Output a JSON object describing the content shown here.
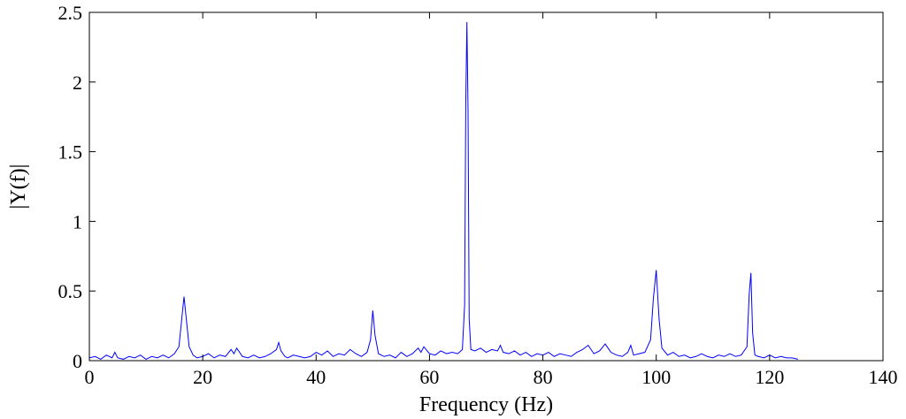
{
  "chart_data": {
    "type": "line",
    "title": "",
    "xlabel": "Frequency (Hz)",
    "ylabel": "|Y(f)|",
    "xlim": [
      0,
      140
    ],
    "ylim": [
      0,
      2.5
    ],
    "xticks": [
      0,
      20,
      40,
      60,
      80,
      100,
      120,
      140
    ],
    "xtick_labels": [
      "0",
      "20",
      "40",
      "60",
      "80",
      "100",
      "120",
      "140"
    ],
    "yticks": [
      0,
      0.5,
      1,
      1.5,
      2,
      2.5
    ],
    "ytick_labels": [
      "0",
      "0.5",
      "1",
      "1.5",
      "2",
      "2.5"
    ],
    "grid": false,
    "legend": "none",
    "series": [
      {
        "color": "#0000ff",
        "x": [
          0,
          1,
          2,
          3,
          4,
          4.5,
          5,
          6,
          7,
          8,
          9,
          10,
          11,
          12,
          13,
          14,
          15,
          15.8,
          16.3,
          16.7,
          17.1,
          17.6,
          18.3,
          19,
          20,
          21,
          22,
          23,
          24,
          25,
          25.5,
          26,
          27,
          28,
          29,
          30,
          31,
          32,
          33.0,
          33.4,
          33.8,
          34.5,
          35,
          36,
          37,
          38,
          39,
          40,
          41,
          42,
          43,
          44,
          45,
          46,
          47,
          48,
          49,
          49.6,
          50.0,
          50.4,
          51,
          52,
          53,
          54,
          55,
          56,
          57,
          58,
          58.5,
          59,
          60,
          61,
          62,
          63,
          64,
          65,
          65.8,
          66.2,
          66.4,
          66.6,
          66.8,
          67.0,
          67.3,
          68,
          69,
          70,
          71,
          72,
          72.5,
          73,
          74,
          75,
          76,
          77,
          78,
          79,
          80,
          81,
          82,
          83,
          84,
          85,
          86,
          87,
          88,
          89,
          90,
          91,
          91.5,
          92,
          93,
          94,
          95,
          95.5,
          96,
          97,
          98,
          99,
          99.5,
          100.0,
          100.5,
          101,
          102,
          103,
          104,
          105,
          106,
          107,
          108,
          109,
          110,
          111,
          112,
          113,
          114,
          115,
          116.0,
          116.4,
          116.7,
          117.0,
          117.4,
          118,
          119,
          120,
          121,
          122,
          123,
          124,
          125
        ],
        "y": [
          0.02,
          0.03,
          0.01,
          0.04,
          0.02,
          0.06,
          0.02,
          0.01,
          0.03,
          0.02,
          0.04,
          0.01,
          0.03,
          0.02,
          0.04,
          0.02,
          0.05,
          0.1,
          0.3,
          0.46,
          0.3,
          0.1,
          0.04,
          0.02,
          0.03,
          0.05,
          0.02,
          0.04,
          0.03,
          0.08,
          0.05,
          0.09,
          0.03,
          0.02,
          0.04,
          0.02,
          0.03,
          0.05,
          0.08,
          0.13,
          0.07,
          0.03,
          0.02,
          0.04,
          0.03,
          0.02,
          0.03,
          0.06,
          0.04,
          0.07,
          0.03,
          0.05,
          0.04,
          0.08,
          0.05,
          0.03,
          0.06,
          0.15,
          0.36,
          0.18,
          0.05,
          0.03,
          0.04,
          0.02,
          0.06,
          0.03,
          0.05,
          0.09,
          0.06,
          0.1,
          0.05,
          0.04,
          0.07,
          0.05,
          0.06,
          0.05,
          0.08,
          0.4,
          1.85,
          2.43,
          1.8,
          0.3,
          0.08,
          0.07,
          0.09,
          0.06,
          0.08,
          0.07,
          0.11,
          0.06,
          0.05,
          0.07,
          0.04,
          0.06,
          0.03,
          0.05,
          0.04,
          0.06,
          0.03,
          0.05,
          0.04,
          0.03,
          0.06,
          0.08,
          0.11,
          0.05,
          0.07,
          0.12,
          0.09,
          0.06,
          0.04,
          0.03,
          0.06,
          0.11,
          0.04,
          0.05,
          0.06,
          0.15,
          0.45,
          0.65,
          0.3,
          0.09,
          0.04,
          0.06,
          0.03,
          0.04,
          0.02,
          0.03,
          0.05,
          0.03,
          0.02,
          0.04,
          0.03,
          0.05,
          0.03,
          0.04,
          0.1,
          0.48,
          0.63,
          0.2,
          0.04,
          0.03,
          0.02,
          0.04,
          0.02,
          0.03,
          0.02,
          0.02,
          0.01
        ]
      }
    ]
  }
}
